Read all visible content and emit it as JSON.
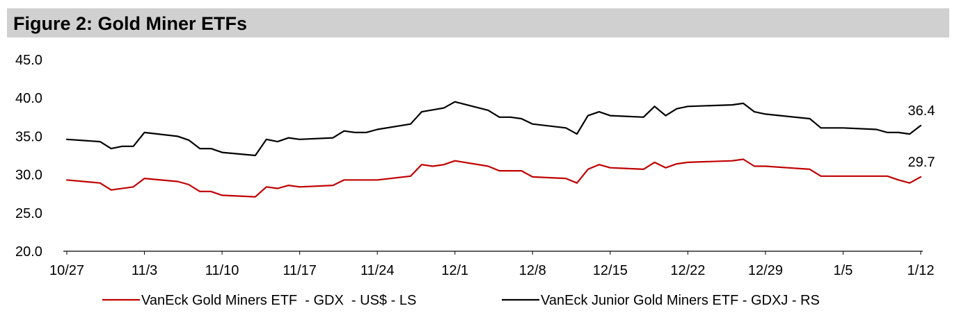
{
  "header": {
    "title": "Figure 2: Gold Miner ETFs"
  },
  "chart_data": {
    "type": "line",
    "title": "Figure 2: Gold Miner ETFs",
    "xlabel": "",
    "ylabel": "",
    "ylim": [
      20.0,
      45.0
    ],
    "y_ticks": [
      "20.0",
      "25.0",
      "30.0",
      "35.0",
      "40.0",
      "45.0"
    ],
    "x_tick_labels": [
      "10/27",
      "11/3",
      "11/10",
      "11/17",
      "11/24",
      "12/1",
      "12/8",
      "12/15",
      "12/22",
      "12/29",
      "1/5",
      "1/12"
    ],
    "x_day_range": [
      0,
      77
    ],
    "x_tick_days": [
      0,
      7,
      14,
      21,
      28,
      35,
      42,
      49,
      56,
      63,
      70,
      77
    ],
    "series": [
      {
        "name": "VanEck Gold Miners ETF  - GDX  - US$ - LS",
        "color": "#c00000",
        "end_label": "29.7",
        "points": [
          [
            0,
            29.3
          ],
          [
            3,
            28.9
          ],
          [
            4,
            28.0
          ],
          [
            6,
            28.4
          ],
          [
            7,
            29.5
          ],
          [
            10,
            29.1
          ],
          [
            11,
            28.7
          ],
          [
            12,
            27.8
          ],
          [
            13,
            27.8
          ],
          [
            14,
            27.3
          ],
          [
            17,
            27.1
          ],
          [
            18,
            28.4
          ],
          [
            19,
            28.2
          ],
          [
            20,
            28.6
          ],
          [
            21,
            28.4
          ],
          [
            24,
            28.6
          ],
          [
            25,
            29.3
          ],
          [
            28,
            29.3
          ],
          [
            31,
            29.8
          ],
          [
            32,
            31.3
          ],
          [
            33,
            31.1
          ],
          [
            34,
            31.3
          ],
          [
            35,
            31.8
          ],
          [
            38,
            31.1
          ],
          [
            39,
            30.5
          ],
          [
            41,
            30.5
          ],
          [
            42,
            29.7
          ],
          [
            45,
            29.5
          ],
          [
            46,
            28.9
          ],
          [
            47,
            30.7
          ],
          [
            48,
            31.3
          ],
          [
            49,
            30.9
          ],
          [
            52,
            30.7
          ],
          [
            53,
            31.6
          ],
          [
            54,
            30.9
          ],
          [
            55,
            31.4
          ],
          [
            56,
            31.6
          ],
          [
            60,
            31.8
          ],
          [
            61,
            32.0
          ],
          [
            62,
            31.1
          ],
          [
            63,
            31.1
          ],
          [
            67,
            30.7
          ],
          [
            68,
            29.8
          ],
          [
            74,
            29.8
          ],
          [
            75,
            29.3
          ],
          [
            76,
            28.9
          ],
          [
            77,
            29.7
          ]
        ]
      },
      {
        "name": "VanEck Junior Gold Miners ETF - GDXJ - RS",
        "color": "#000000",
        "end_label": "36.4",
        "points": [
          [
            0,
            34.6
          ],
          [
            3,
            34.3
          ],
          [
            4,
            33.4
          ],
          [
            5,
            33.7
          ],
          [
            6,
            33.7
          ],
          [
            7,
            35.5
          ],
          [
            10,
            35.0
          ],
          [
            11,
            34.5
          ],
          [
            12,
            33.4
          ],
          [
            13,
            33.4
          ],
          [
            14,
            32.9
          ],
          [
            17,
            32.5
          ],
          [
            18,
            34.6
          ],
          [
            19,
            34.3
          ],
          [
            20,
            34.8
          ],
          [
            21,
            34.6
          ],
          [
            24,
            34.8
          ],
          [
            25,
            35.7
          ],
          [
            26,
            35.5
          ],
          [
            27,
            35.5
          ],
          [
            28,
            35.9
          ],
          [
            31,
            36.6
          ],
          [
            32,
            38.2
          ],
          [
            34,
            38.7
          ],
          [
            35,
            39.5
          ],
          [
            38,
            38.4
          ],
          [
            39,
            37.5
          ],
          [
            40,
            37.5
          ],
          [
            41,
            37.3
          ],
          [
            42,
            36.6
          ],
          [
            45,
            36.1
          ],
          [
            46,
            35.3
          ],
          [
            47,
            37.7
          ],
          [
            48,
            38.2
          ],
          [
            49,
            37.7
          ],
          [
            52,
            37.5
          ],
          [
            53,
            38.9
          ],
          [
            54,
            37.7
          ],
          [
            55,
            38.6
          ],
          [
            56,
            38.9
          ],
          [
            60,
            39.1
          ],
          [
            61,
            39.3
          ],
          [
            62,
            38.2
          ],
          [
            63,
            37.9
          ],
          [
            67,
            37.3
          ],
          [
            68,
            36.1
          ],
          [
            70,
            36.1
          ],
          [
            73,
            35.9
          ],
          [
            74,
            35.5
          ],
          [
            75,
            35.5
          ],
          [
            76,
            35.3
          ],
          [
            77,
            36.4
          ]
        ]
      }
    ],
    "legend_position": "bottom"
  }
}
